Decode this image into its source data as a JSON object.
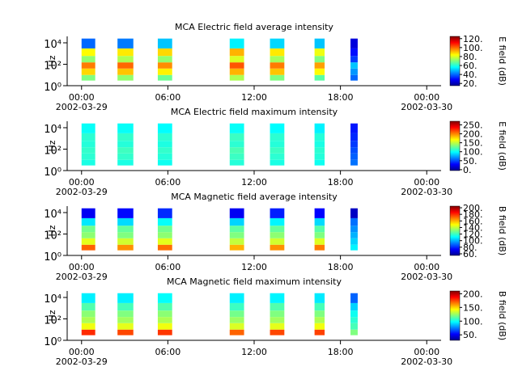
{
  "chart_data": [
    {
      "type": "heatmap",
      "title": "MCA  Electric field average intensity",
      "ylabel": "Hz",
      "clabel": "E field (dB)",
      "xlim": [
        -1,
        25
      ],
      "ylim": [
        1,
        40000
      ],
      "ylog": true,
      "xticks": [
        {
          "value": 0,
          "label": "00:00"
        },
        {
          "value": 6,
          "label": "06:00"
        },
        {
          "value": 12,
          "label": "12:00"
        },
        {
          "value": 18,
          "label": "18:00"
        },
        {
          "value": 24,
          "label": "00:00"
        }
      ],
      "xdates": [
        {
          "value": 0,
          "label": "2002-03-29"
        },
        {
          "value": 24,
          "label": "2002-03-30"
        }
      ],
      "yticks": [
        {
          "value": 1,
          "label": "10⁰"
        },
        {
          "value": 100,
          "label": "10²"
        },
        {
          "value": 10000,
          "label": "10⁴"
        }
      ],
      "clim": [
        15,
        125
      ],
      "cticks": [
        {
          "value": 20,
          "label": "20."
        },
        {
          "value": 40,
          "label": "40."
        },
        {
          "value": 60,
          "label": "60."
        },
        {
          "value": 80,
          "label": "80."
        },
        {
          "value": 100,
          "label": "100."
        },
        {
          "value": 120,
          "label": "120."
        }
      ],
      "ybins": [
        3,
        10,
        40,
        150,
        600,
        3000,
        25000
      ],
      "segments": [
        {
          "start": 0,
          "end": 0.95,
          "values": [
            70,
            88,
            98,
            72,
            84,
            40
          ]
        },
        {
          "start": 2.5,
          "end": 3.6,
          "values": [
            72,
            90,
            100,
            75,
            86,
            42
          ]
        },
        {
          "start": 5.3,
          "end": 6.3,
          "values": [
            68,
            85,
            96,
            72,
            88,
            50
          ]
        },
        {
          "start": 10.3,
          "end": 11.3,
          "values": [
            75,
            92,
            102,
            80,
            92,
            55
          ]
        },
        {
          "start": 13.1,
          "end": 14.1,
          "values": [
            70,
            90,
            98,
            74,
            86,
            52
          ]
        },
        {
          "start": 16.2,
          "end": 16.9,
          "values": [
            66,
            84,
            94,
            70,
            82,
            50
          ]
        },
        {
          "start": 18.7,
          "end": 19.2,
          "values": [
            40,
            45,
            50,
            35,
            30,
            25
          ]
        }
      ]
    },
    {
      "type": "heatmap",
      "title": "MCA  Electric field maximum intensity",
      "ylabel": "Hz",
      "clabel": "E field (dB)",
      "xlim": [
        -1,
        25
      ],
      "ylim": [
        1,
        40000
      ],
      "ylog": true,
      "xticks": [
        {
          "value": 0,
          "label": "00:00"
        },
        {
          "value": 6,
          "label": "06:00"
        },
        {
          "value": 12,
          "label": "12:00"
        },
        {
          "value": 18,
          "label": "18:00"
        },
        {
          "value": 24,
          "label": "00:00"
        }
      ],
      "xdates": [
        {
          "value": 0,
          "label": "2002-03-29"
        },
        {
          "value": 24,
          "label": "2002-03-30"
        }
      ],
      "yticks": [
        {
          "value": 1,
          "label": "10⁰"
        },
        {
          "value": 100,
          "label": "10²"
        },
        {
          "value": 10000,
          "label": "10⁴"
        }
      ],
      "clim": [
        -5,
        270
      ],
      "cticks": [
        {
          "value": 0,
          "label": "0."
        },
        {
          "value": 50,
          "label": "50."
        },
        {
          "value": 100,
          "label": "100."
        },
        {
          "value": 150,
          "label": "150."
        },
        {
          "value": 200,
          "label": "200."
        },
        {
          "value": 250,
          "label": "250."
        }
      ],
      "ybins": [
        3,
        10,
        40,
        150,
        600,
        3000,
        25000
      ],
      "segments": [
        {
          "start": 0,
          "end": 0.95,
          "values": [
            105,
            110,
            112,
            108,
            110,
            100
          ]
        },
        {
          "start": 2.5,
          "end": 3.6,
          "values": [
            105,
            112,
            115,
            108,
            112,
            100
          ]
        },
        {
          "start": 5.3,
          "end": 6.3,
          "values": [
            102,
            108,
            112,
            106,
            110,
            98
          ]
        },
        {
          "start": 10.3,
          "end": 11.3,
          "values": [
            108,
            114,
            118,
            110,
            114,
            100
          ]
        },
        {
          "start": 13.1,
          "end": 14.1,
          "values": [
            105,
            110,
            114,
            108,
            110,
            98
          ]
        },
        {
          "start": 16.2,
          "end": 16.9,
          "values": [
            102,
            108,
            110,
            105,
            108,
            95
          ]
        },
        {
          "start": 18.7,
          "end": 19.2,
          "values": [
            60,
            55,
            50,
            45,
            40,
            35
          ]
        }
      ]
    },
    {
      "type": "heatmap",
      "title": "MCA  Magnetic field average intensity",
      "ylabel": "Hz",
      "clabel": "B field (dB)",
      "xlim": [
        -1,
        25
      ],
      "ylim": [
        1,
        40000
      ],
      "ylog": true,
      "xticks": [
        {
          "value": 0,
          "label": "00:00"
        },
        {
          "value": 6,
          "label": "06:00"
        },
        {
          "value": 12,
          "label": "12:00"
        },
        {
          "value": 18,
          "label": "18:00"
        },
        {
          "value": 24,
          "label": "00:00"
        }
      ],
      "xdates": [
        {
          "value": 0,
          "label": "2002-03-29"
        },
        {
          "value": 24,
          "label": "2002-03-30"
        }
      ],
      "yticks": [
        {
          "value": 1,
          "label": "10⁰"
        },
        {
          "value": 100,
          "label": "10²"
        },
        {
          "value": 10000,
          "label": "10⁴"
        }
      ],
      "clim": [
        55,
        205
      ],
      "cticks": [
        {
          "value": 60,
          "label": "60."
        },
        {
          "value": 80,
          "label": "80."
        },
        {
          "value": 100,
          "label": "100."
        },
        {
          "value": 120,
          "label": "120."
        },
        {
          "value": 140,
          "label": "140."
        },
        {
          "value": 160,
          "label": "160."
        },
        {
          "value": 180,
          "label": "180."
        },
        {
          "value": 200,
          "label": "200."
        }
      ],
      "ybins": [
        3,
        10,
        40,
        150,
        600,
        3000,
        25000
      ],
      "segments": [
        {
          "start": 0,
          "end": 0.95,
          "values": [
            172,
            145,
            132,
            128,
            108,
            72
          ]
        },
        {
          "start": 2.5,
          "end": 3.6,
          "values": [
            165,
            142,
            130,
            126,
            106,
            75
          ]
        },
        {
          "start": 5.3,
          "end": 6.3,
          "values": [
            170,
            145,
            132,
            128,
            112,
            80
          ]
        },
        {
          "start": 10.3,
          "end": 11.3,
          "values": [
            160,
            140,
            130,
            125,
            105,
            72
          ]
        },
        {
          "start": 13.1,
          "end": 14.1,
          "values": [
            165,
            142,
            132,
            126,
            110,
            78
          ]
        },
        {
          "start": 16.2,
          "end": 16.9,
          "values": [
            168,
            144,
            130,
            124,
            106,
            74
          ]
        },
        {
          "start": 18.7,
          "end": 19.2,
          "values": [
            110,
            105,
            100,
            95,
            90,
            65
          ]
        }
      ]
    },
    {
      "type": "heatmap",
      "title": "MCA  Magnetic field maximum intensity",
      "ylabel": "Hz",
      "clabel": "B field (dB)",
      "xlim": [
        -1,
        25
      ],
      "ylim": [
        1,
        40000
      ],
      "ylog": true,
      "xticks": [
        {
          "value": 0,
          "label": "00:00"
        },
        {
          "value": 6,
          "label": "06:00"
        },
        {
          "value": 12,
          "label": "12:00"
        },
        {
          "value": 18,
          "label": "18:00"
        },
        {
          "value": 24,
          "label": "00:00"
        }
      ],
      "xdates": [
        {
          "value": 0,
          "label": "2002-03-29"
        },
        {
          "value": 24,
          "label": "2002-03-30"
        }
      ],
      "yticks": [
        {
          "value": 1,
          "label": "10⁰"
        },
        {
          "value": 100,
          "label": "10²"
        },
        {
          "value": 10000,
          "label": "10⁴"
        }
      ],
      "clim": [
        30,
        210
      ],
      "cticks": [
        {
          "value": 50,
          "label": "50."
        },
        {
          "value": 100,
          "label": "100."
        },
        {
          "value": 150,
          "label": "150."
        },
        {
          "value": 200,
          "label": "200."
        }
      ],
      "ybins": [
        3,
        10,
        40,
        150,
        600,
        3000,
        25000
      ],
      "segments": [
        {
          "start": 0,
          "end": 0.95,
          "values": [
            180,
            140,
            128,
            122,
            112,
            95
          ]
        },
        {
          "start": 2.5,
          "end": 3.6,
          "values": [
            175,
            138,
            126,
            120,
            110,
            95
          ]
        },
        {
          "start": 5.3,
          "end": 6.3,
          "values": [
            178,
            140,
            128,
            122,
            112,
            98
          ]
        },
        {
          "start": 10.3,
          "end": 11.3,
          "values": [
            170,
            136,
            125,
            118,
            108,
            95
          ]
        },
        {
          "start": 13.1,
          "end": 14.1,
          "values": [
            175,
            138,
            126,
            120,
            112,
            96
          ]
        },
        {
          "start": 16.2,
          "end": 16.9,
          "values": [
            176,
            140,
            128,
            120,
            110,
            94
          ]
        },
        {
          "start": 18.7,
          "end": 19.2,
          "values": [
            120,
            110,
            105,
            100,
            90,
            70
          ]
        }
      ]
    }
  ]
}
